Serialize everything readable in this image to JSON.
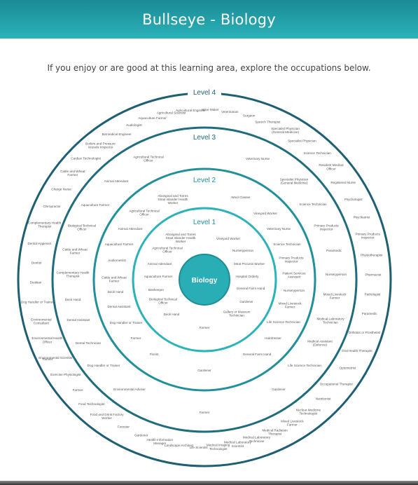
{
  "header": {
    "title": "Bullseye - Biology"
  },
  "intro": {
    "text": "If you enjoy or are good at this learning area, explore the occupations below."
  },
  "center": {
    "label": "Biology"
  },
  "rings": [
    {
      "label": "Level 4"
    },
    {
      "label": "Level 3"
    },
    {
      "label": "Level 2"
    },
    {
      "label": "Level 1"
    }
  ],
  "occupations": {
    "level1": [
      [
        "Aboriginal and Torres",
        "Strait Islander Health",
        "Worker"
      ],
      [
        "Agricultural Technical",
        "Officer"
      ],
      [
        "Animal Attendant"
      ],
      [
        "Aquaculture Farmer"
      ],
      [
        "Beekeeper"
      ],
      [
        "Biological Technical",
        "Officer"
      ],
      [
        "Deck Hand"
      ],
      [
        "Farmer"
      ],
      [
        "Gallery or Museum",
        "Technician"
      ],
      [
        "Gardener"
      ],
      [
        "General Farm Hand"
      ],
      [
        "Hospital Orderly"
      ],
      [
        "Meat Process Worker"
      ],
      [
        "Nurseryperson"
      ],
      [
        "Vineyard Worker"
      ]
    ],
    "level2": [
      [
        "Aboriginal and Torres",
        "Strait Islander Health",
        "Worker"
      ],
      [
        "Wool Classer"
      ],
      [
        "Vineyard Worker"
      ],
      [
        "Veterinary Nurse"
      ],
      [
        "Science Technician"
      ],
      [
        "Primary Products",
        "Inspector"
      ],
      [
        "Patient Services",
        "Assistant"
      ],
      [
        "Nurseryperson"
      ],
      [
        "Mixed Livestock",
        "Farmer"
      ],
      [
        "Life Science Technician"
      ],
      [
        "Hairdresser"
      ],
      [
        "General Farm Hand"
      ],
      [
        "Gardener"
      ],
      [
        "Florist"
      ],
      [
        "Farmer"
      ],
      [
        "Dog Handler or Trainer"
      ],
      [
        "Dental Assistant"
      ],
      [
        "Deck Hand"
      ],
      [
        "Cattle and Wheat",
        "Farmer"
      ],
      [
        "Audiometrist"
      ],
      [
        "Aquaculture Farmer"
      ],
      [
        "Animal Attendant"
      ],
      [
        "Agricultural Technical",
        "Officer"
      ]
    ],
    "level3": [
      [
        "Veterinary Nurse"
      ],
      [
        "Specialist Physician",
        "(General Medicine)"
      ],
      [
        "Science Technician"
      ],
      [
        "Primary Products",
        "Inspector"
      ],
      [
        "Paramedic"
      ],
      [
        "Nurseryperson"
      ],
      [
        "Mixed Livestock",
        "Farmer"
      ],
      [
        "Medical Laboratory",
        "Technician"
      ],
      [
        "Medical Assistant",
        "(Defence)"
      ],
      [
        "Life Science Technician"
      ],
      [
        "Gardener"
      ],
      [
        "Farmer"
      ],
      [
        "Environmental Adviser"
      ],
      [
        "Dog Handler or Trainer"
      ],
      [
        "Dental Technician"
      ],
      [
        "Dental Assistant"
      ],
      [
        "Deck Hand"
      ],
      [
        "Complementary Health",
        "Therapist"
      ],
      [
        "Cattle and Wheat",
        "Farmer"
      ],
      [
        "Biological Technical",
        "Officer"
      ],
      [
        "Aquaculture Farmer"
      ],
      [
        "Animal Attendant"
      ],
      [
        "Agricultural Technical",
        "Officer"
      ]
    ],
    "level4": [
      [
        "Agricultural Engineer"
      ],
      [
        "Wine Maker"
      ],
      [
        "Veterinarian"
      ],
      [
        "Surgeon"
      ],
      [
        "Speech Therapist"
      ],
      [
        "Specialist Physician",
        "(General Medicine)"
      ],
      [
        "Specialist Physician"
      ],
      [
        "Science Technician"
      ],
      [
        "Resident Medical",
        "Officer"
      ],
      [
        "Registered Nurse"
      ],
      [
        "Psychologist"
      ],
      [
        "Psychiatrist"
      ],
      [
        "Primary Products",
        "Inspector"
      ],
      [
        "Physiotherapist"
      ],
      [
        "Pharmacist"
      ],
      [
        "Pathologist"
      ],
      [
        "Paramedic"
      ],
      [
        "Orthotist or Prosthetist"
      ],
      [
        "Oral Health Therapist"
      ],
      [
        "Optometrist"
      ],
      [
        "Occupational Therapist"
      ],
      [
        "Nutritionist"
      ],
      [
        "Nuclear Medicine",
        "Technologist"
      ],
      [
        "Mixed Livestock",
        "Farmer"
      ],
      [
        "Medical Radiation",
        "Therapist"
      ],
      [
        "Medical Laboratory",
        "Technician"
      ],
      [
        "Medical Laboratory",
        "Scientist"
      ],
      [
        "Medical Imaging",
        "Technologist"
      ],
      [
        "Life Scientist"
      ],
      [
        "Landscape Architect"
      ],
      [
        "Health Information",
        "Manager"
      ],
      [
        "Gardener"
      ],
      [
        "Forester"
      ],
      [
        "Food and Drink Factory",
        "Worker"
      ],
      [
        "Food Technologist"
      ],
      [
        "Farmer"
      ],
      [
        "Exercise Physiologist"
      ],
      [
        "Environmental Scientist"
      ],
      [
        "Environmental Health",
        "Officer"
      ],
      [
        "Environmental",
        "Consultant"
      ],
      [
        "Dog Handler or Trainer"
      ],
      [
        "Dietitian"
      ],
      [
        "Dentist"
      ],
      [
        "Dental Hygienist"
      ],
      [
        "Complementary Health",
        "Therapist"
      ],
      [
        "Chiropractor"
      ],
      [
        "Charge Nurse"
      ],
      [
        "Cattle and Wheat",
        "Farmer"
      ],
      [
        "Cardiac Technologist"
      ],
      [
        "Boilers and Pressure",
        "Vessels Inspector"
      ],
      [
        "Biomedical Engineer"
      ],
      [
        "Audiologist"
      ],
      [
        "Aquaculture Farmer"
      ],
      [
        "Agricultural Scientist"
      ]
    ],
    "outer_extra": [
      [
        "Farmer"
      ]
    ]
  }
}
